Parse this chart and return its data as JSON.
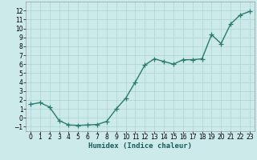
{
  "x": [
    0,
    1,
    2,
    3,
    4,
    5,
    6,
    7,
    8,
    9,
    10,
    11,
    12,
    13,
    14,
    15,
    16,
    17,
    18,
    19,
    20,
    21,
    22,
    23
  ],
  "y": [
    1.5,
    1.7,
    1.2,
    -0.3,
    -0.8,
    -0.85,
    -0.8,
    -0.75,
    -0.4,
    1.0,
    2.2,
    4.0,
    5.9,
    6.6,
    6.3,
    6.0,
    6.5,
    6.5,
    6.6,
    9.3,
    8.3,
    10.5,
    11.5,
    11.9
  ],
  "line_color": "#2a7a6e",
  "marker": "+",
  "marker_size": 4,
  "bg_color": "#cceaea",
  "grid_color": "#aad4d4",
  "xlabel": "Humidex (Indice chaleur)",
  "xlim": [
    -0.5,
    23.5
  ],
  "ylim": [
    -1.5,
    13.0
  ],
  "yticks": [
    -1,
    0,
    1,
    2,
    3,
    4,
    5,
    6,
    7,
    8,
    9,
    10,
    11,
    12
  ],
  "xticks": [
    0,
    1,
    2,
    3,
    4,
    5,
    6,
    7,
    8,
    9,
    10,
    11,
    12,
    13,
    14,
    15,
    16,
    17,
    18,
    19,
    20,
    21,
    22,
    23
  ],
  "label_fontsize": 6.5,
  "tick_fontsize": 5.5,
  "linewidth": 1.0
}
